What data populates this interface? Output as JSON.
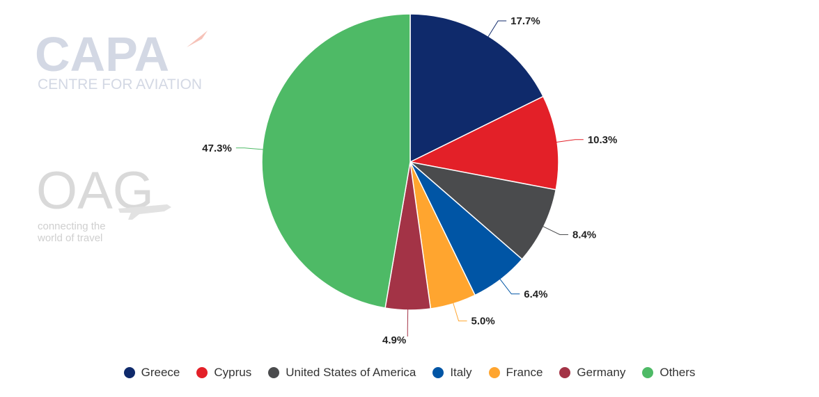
{
  "chart_data": {
    "type": "pie",
    "categories": [
      "Greece",
      "Cyprus",
      "United States of America",
      "Italy",
      "France",
      "Germany",
      "Others"
    ],
    "values": [
      17.7,
      10.3,
      8.4,
      6.4,
      5.0,
      4.9,
      47.3
    ],
    "labels": [
      "17.7%",
      "10.3%",
      "8.4%",
      "6.4%",
      "5.0%",
      "4.9%",
      "47.3%"
    ],
    "colors": [
      "#0f2a6b",
      "#e32028",
      "#4a4b4d",
      "#0055a5",
      "#ffa52f",
      "#a33346",
      "#4eba66"
    ],
    "legend_position": "bottom"
  },
  "logos": {
    "capa": {
      "wordmark": "CAPA",
      "tagline": "CENTRE FOR AVIATION"
    },
    "oag": {
      "wordmark": "OAG",
      "tagline_line1": "connecting the",
      "tagline_line2": "world of travel"
    }
  }
}
